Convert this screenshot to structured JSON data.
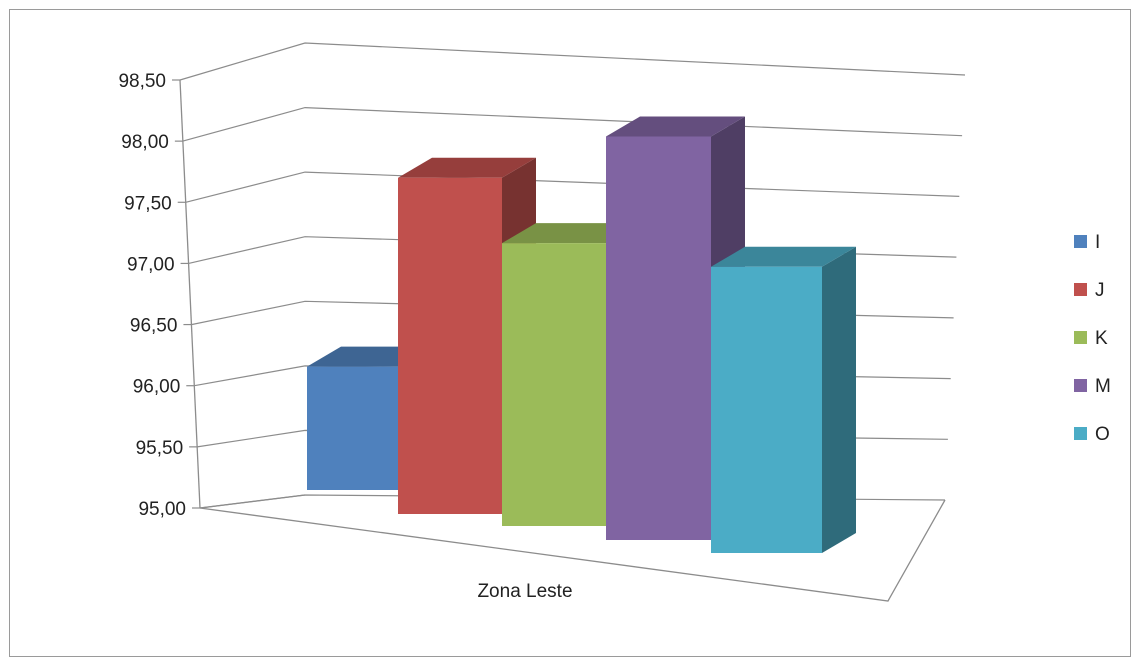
{
  "chart_data": {
    "type": "bar",
    "title": "",
    "xlabel": "",
    "ylabel": "",
    "categories": [
      "Zona Leste"
    ],
    "ylim": [
      95.0,
      98.5
    ],
    "yticks": [
      "95,00",
      "95,50",
      "96,00",
      "96,50",
      "97,00",
      "97,50",
      "98,00",
      "98,50"
    ],
    "grid": true,
    "legend_position": "right",
    "series": [
      {
        "name": "I",
        "values": [
          96.02
        ],
        "color": "#4f81bd"
      },
      {
        "name": "J",
        "values": [
          97.69
        ],
        "color": "#c0504d"
      },
      {
        "name": "K",
        "values": [
          97.21
        ],
        "color": "#9bbb59"
      },
      {
        "name": "M",
        "values": [
          98.08
        ],
        "color": "#8064a2"
      },
      {
        "name": "O",
        "values": [
          97.12
        ],
        "color": "#4bacc6"
      }
    ]
  }
}
